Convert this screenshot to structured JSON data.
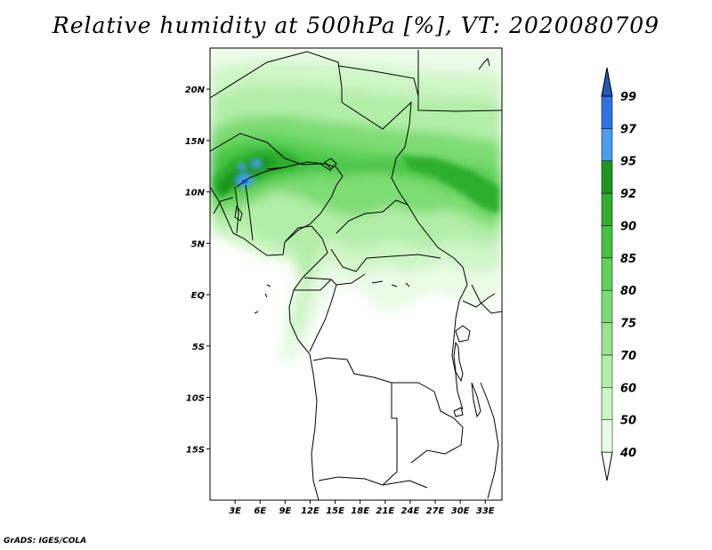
{
  "title": "Relative humidity at 500hPa [%], VT: 2020080709",
  "credit": "GrADS: IGES/COLA",
  "map": {
    "lon_range": [
      0,
      35
    ],
    "lat_range": [
      -20,
      24
    ],
    "lat_ticks": [
      {
        "value": 20,
        "label": "20N"
      },
      {
        "value": 15,
        "label": "15N"
      },
      {
        "value": 10,
        "label": "10N"
      },
      {
        "value": 5,
        "label": "5N"
      },
      {
        "value": 0,
        "label": "EQ"
      },
      {
        "value": -5,
        "label": "5S"
      },
      {
        "value": -10,
        "label": "10S"
      },
      {
        "value": -15,
        "label": "15S"
      }
    ],
    "lon_ticks": [
      {
        "value": 3,
        "label": "3E"
      },
      {
        "value": 6,
        "label": "6E"
      },
      {
        "value": 9,
        "label": "9E"
      },
      {
        "value": 12,
        "label": "12E"
      },
      {
        "value": 15,
        "label": "15E"
      },
      {
        "value": 18,
        "label": "18E"
      },
      {
        "value": 21,
        "label": "21E"
      },
      {
        "value": 24,
        "label": "24E"
      },
      {
        "value": 27,
        "label": "27E"
      },
      {
        "value": 30,
        "label": "30E"
      },
      {
        "value": 33,
        "label": "33E"
      }
    ]
  },
  "colorbar": {
    "levels": [
      "40",
      "50",
      "60",
      "70",
      "75",
      "80",
      "85",
      "90",
      "92",
      "95",
      "97",
      "99"
    ],
    "colors": [
      "#ffffff",
      "#e8fbe4",
      "#cdf5c5",
      "#b2eea8",
      "#97e68d",
      "#7ddc73",
      "#5fd25a",
      "#44c243",
      "#2fae2f",
      "#1d961f",
      "#4a9cf0",
      "#2e73e0",
      "#2357b8"
    ]
  }
}
